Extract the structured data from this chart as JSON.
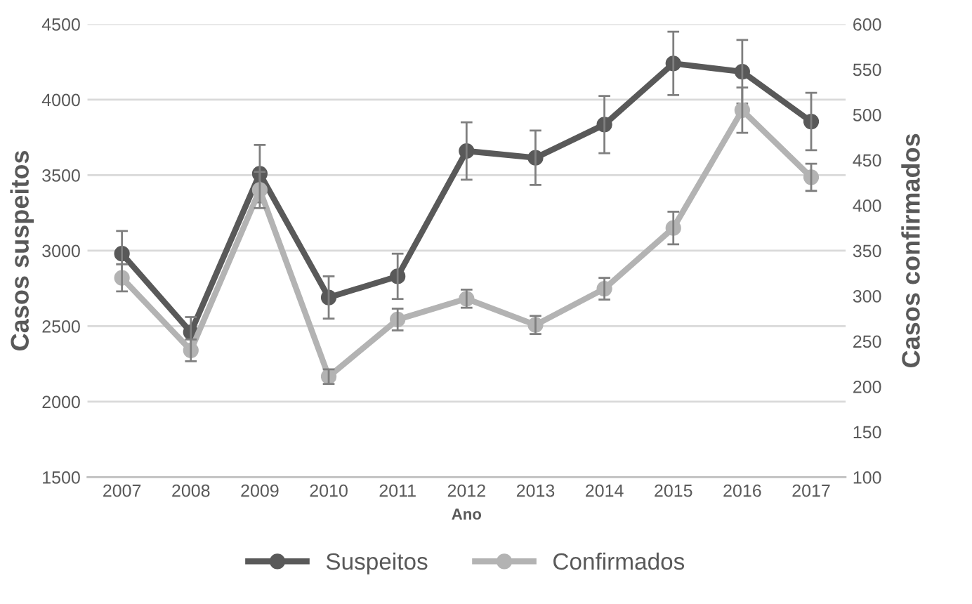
{
  "chart_data": {
    "type": "line",
    "xlabel": "Ano",
    "ylabel": "Casos suspeitos",
    "y2label": "Casos confirmados",
    "categories": [
      "2007",
      "2008",
      "2009",
      "2010",
      "2011",
      "2012",
      "2013",
      "2014",
      "2015",
      "2016",
      "2017"
    ],
    "series": [
      {
        "name": "Suspeitos",
        "color": "#595959",
        "values": [
          2980,
          2460,
          3510,
          2690,
          2830,
          3660,
          3615,
          3835,
          4240,
          4185,
          3855
        ],
        "errors": [
          150,
          100,
          190,
          140,
          150,
          190,
          180,
          190,
          210,
          210,
          190
        ]
      },
      {
        "name": "Confirmados",
        "color": "#b3b3b3",
        "axis": "y2",
        "values": [
          320,
          240,
          417,
          211,
          274,
          297,
          268,
          308,
          375,
          505,
          431
        ],
        "errors": [
          15,
          12,
          20,
          8,
          12,
          10,
          10,
          12,
          18,
          25,
          15
        ]
      }
    ],
    "ylim": [
      1500,
      4500
    ],
    "yticks": [
      1500,
      2000,
      2500,
      3000,
      3500,
      4000,
      4500
    ],
    "y2lim": [
      100,
      600
    ],
    "y2ticks": [
      100,
      150,
      200,
      250,
      300,
      350,
      400,
      450,
      500,
      550,
      600
    ],
    "grid": "y",
    "legend": "bottom",
    "marker": "circle",
    "line_style": "solid"
  }
}
